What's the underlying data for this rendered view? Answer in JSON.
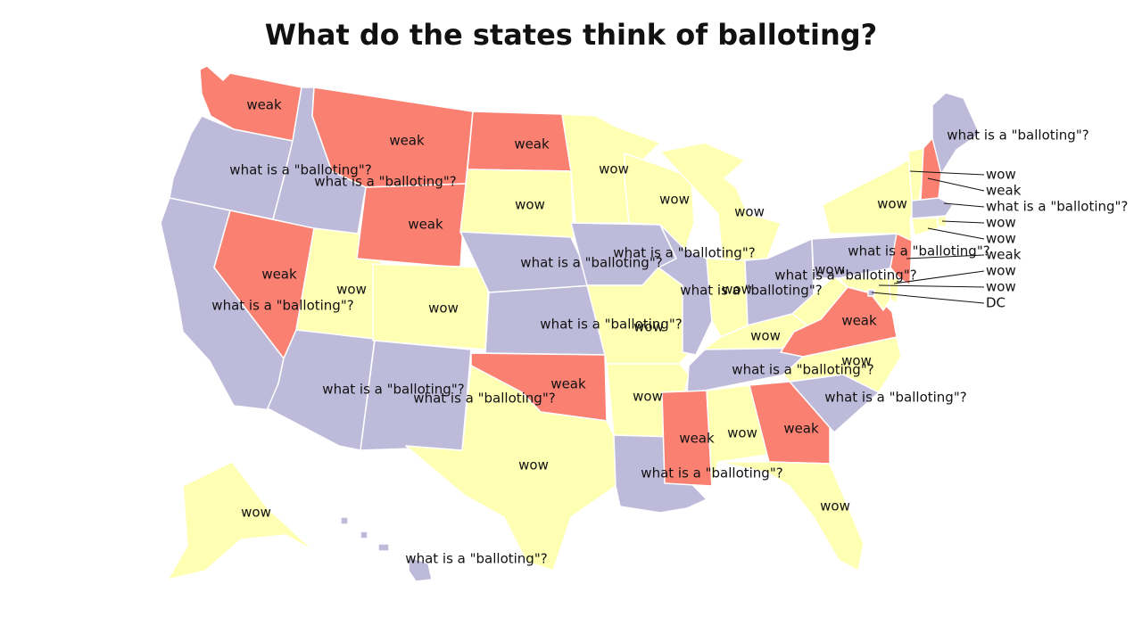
{
  "title": "What do the states think of balloting?",
  "colors": {
    "weak": "#fa8072",
    "wow": "#ffffb4",
    "what": "#bebbda"
  },
  "states": [
    {
      "id": "WA",
      "cat": "weak",
      "label": "weak"
    },
    {
      "id": "OR",
      "cat": "what",
      "label": "what is a \"balloting\"?"
    },
    {
      "id": "CA",
      "cat": "what",
      "label": "what is a \"balloting\"?"
    },
    {
      "id": "ID",
      "cat": "what",
      "label": "what is a \"balloting\"?"
    },
    {
      "id": "NV",
      "cat": "weak",
      "label": "weak"
    },
    {
      "id": "UT",
      "cat": "wow",
      "label": "wow"
    },
    {
      "id": "AZ",
      "cat": "what",
      "label": "what is a \"balloting\"?"
    },
    {
      "id": "MT",
      "cat": "weak",
      "label": "weak"
    },
    {
      "id": "WY",
      "cat": "weak",
      "label": "weak"
    },
    {
      "id": "CO",
      "cat": "wow",
      "label": "wow"
    },
    {
      "id": "NM",
      "cat": "what",
      "label": "what is a \"balloting\"?"
    },
    {
      "id": "ND",
      "cat": "weak",
      "label": "weak"
    },
    {
      "id": "SD",
      "cat": "wow",
      "label": "wow"
    },
    {
      "id": "NE",
      "cat": "what",
      "label": "what is a \"balloting\"?"
    },
    {
      "id": "KS",
      "cat": "what",
      "label": "what is a \"balloting\"?"
    },
    {
      "id": "OK",
      "cat": "weak",
      "label": "weak"
    },
    {
      "id": "TX",
      "cat": "wow",
      "label": "wow"
    },
    {
      "id": "MN",
      "cat": "wow",
      "label": "wow"
    },
    {
      "id": "IA",
      "cat": "what",
      "label": "what is a \"balloting\"?"
    },
    {
      "id": "MO",
      "cat": "wow",
      "label": "wow"
    },
    {
      "id": "AR",
      "cat": "wow",
      "label": "wow"
    },
    {
      "id": "LA",
      "cat": "what",
      "label": "what is a \"balloting\"?"
    },
    {
      "id": "WI",
      "cat": "wow",
      "label": "wow"
    },
    {
      "id": "IL",
      "cat": "what",
      "label": "what is a \"balloting\"?"
    },
    {
      "id": "MI",
      "cat": "wow",
      "label": "wow"
    },
    {
      "id": "IN",
      "cat": "wow",
      "label": "wow"
    },
    {
      "id": "OH",
      "cat": "what",
      "label": "what is a \"balloting\"?"
    },
    {
      "id": "KY",
      "cat": "wow",
      "label": "wow"
    },
    {
      "id": "TN",
      "cat": "what",
      "label": "what is a \"balloting\"?"
    },
    {
      "id": "MS",
      "cat": "weak",
      "label": "weak"
    },
    {
      "id": "AL",
      "cat": "wow",
      "label": "wow"
    },
    {
      "id": "GA",
      "cat": "weak",
      "label": "weak"
    },
    {
      "id": "FL",
      "cat": "wow",
      "label": "wow"
    },
    {
      "id": "SC",
      "cat": "what",
      "label": "what is a \"balloting\"?"
    },
    {
      "id": "NC",
      "cat": "wow",
      "label": "wow"
    },
    {
      "id": "VA",
      "cat": "weak",
      "label": "weak"
    },
    {
      "id": "WV",
      "cat": "wow",
      "label": "wow"
    },
    {
      "id": "PA",
      "cat": "what",
      "label": "what is a \"balloting\"?"
    },
    {
      "id": "NY",
      "cat": "wow",
      "label": "wow"
    },
    {
      "id": "ME",
      "cat": "what",
      "label": "what is a \"balloting\"?"
    },
    {
      "id": "VT",
      "cat": "wow",
      "label": "wow"
    },
    {
      "id": "NH",
      "cat": "weak",
      "label": "weak"
    },
    {
      "id": "MA",
      "cat": "what",
      "label": "what is a \"balloting\"?"
    },
    {
      "id": "RI",
      "cat": "wow",
      "label": "wow"
    },
    {
      "id": "CT",
      "cat": "wow",
      "label": "wow"
    },
    {
      "id": "NJ",
      "cat": "weak",
      "label": "weak"
    },
    {
      "id": "DE",
      "cat": "wow",
      "label": "wow"
    },
    {
      "id": "MD",
      "cat": "wow",
      "label": "wow"
    },
    {
      "id": "DC",
      "cat": "what",
      "label": "DC"
    },
    {
      "id": "AK",
      "cat": "wow",
      "label": "wow"
    },
    {
      "id": "HI",
      "cat": "what",
      "label": "what is a \"balloting\"?"
    }
  ]
}
